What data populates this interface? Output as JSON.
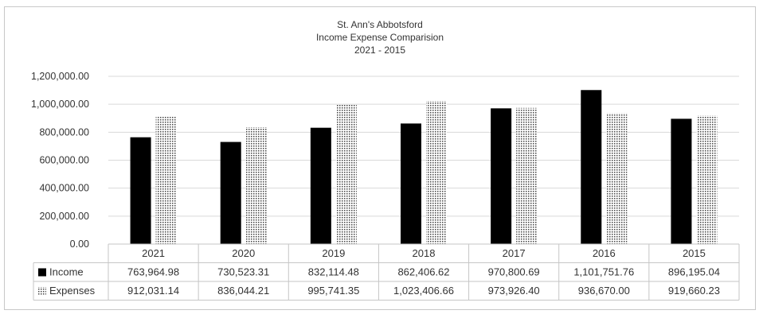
{
  "chart_data": {
    "type": "bar",
    "title": "St. Ann's Abbotsford",
    "subtitle_lines": [
      "Income Expense Comparision",
      "2021 - 2015"
    ],
    "categories": [
      "2021",
      "2020",
      "2019",
      "2018",
      "2017",
      "2016",
      "2015"
    ],
    "series": [
      {
        "name": "Income",
        "pattern": "solid",
        "color": "#000000",
        "values": [
          763964.98,
          730523.31,
          832114.48,
          862406.62,
          970800.69,
          1101751.76,
          896195.04
        ],
        "labels": [
          "763,964.98",
          "730,523.31",
          "832,114.48",
          "862,406.62",
          "970,800.69",
          "1,101,751.76",
          "896,195.04"
        ]
      },
      {
        "name": "Expenses",
        "pattern": "dotted",
        "color": "#555555",
        "values": [
          912031.14,
          836044.21,
          995741.35,
          1023406.66,
          973926.4,
          936670.0,
          919660.23
        ],
        "labels": [
          "912,031.14",
          "836,044.21",
          "995,741.35",
          "1,023,406.66",
          "973,926.40",
          "936,670.00",
          "919,660.23"
        ]
      }
    ],
    "ylim": [
      0,
      1200000
    ],
    "yticks": [
      0,
      200000,
      400000,
      600000,
      800000,
      1000000,
      1200000
    ],
    "ytick_labels": [
      "0.00",
      "200,000.00",
      "400,000.00",
      "600,000.00",
      "800,000.00",
      "1,000,000.00",
      "1,200,000.00"
    ],
    "grid": true,
    "legend": "data-table"
  }
}
